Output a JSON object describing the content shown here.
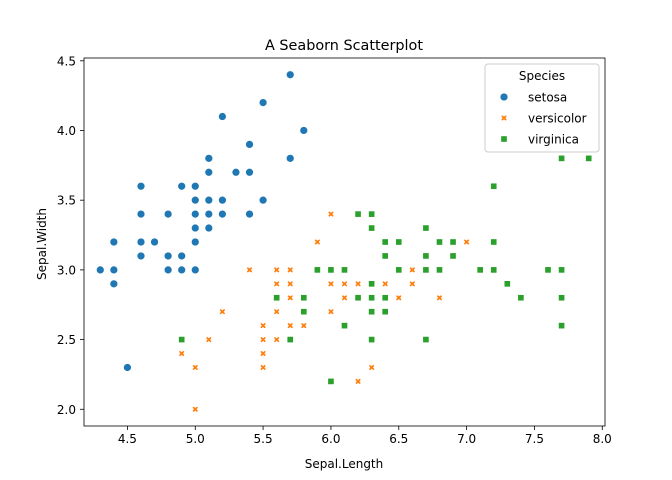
{
  "chart_data": {
    "type": "scatter",
    "title": "A Seaborn Scatterplot",
    "xlabel": "Sepal.Length",
    "ylabel": "Sepal.Width",
    "xlim": [
      4.18,
      8.02
    ],
    "ylim": [
      1.88,
      4.52
    ],
    "xticks": [
      4.5,
      5.0,
      5.5,
      6.0,
      6.5,
      7.0,
      7.5,
      8.0
    ],
    "xtick_labels": [
      "4.5",
      "5.0",
      "5.5",
      "6.0",
      "6.5",
      "7.0",
      "7.5",
      "8.0"
    ],
    "yticks": [
      2.0,
      2.5,
      3.0,
      3.5,
      4.0,
      4.5
    ],
    "ytick_labels": [
      "2.0",
      "2.5",
      "3.0",
      "3.5",
      "4.0",
      "4.5"
    ],
    "grid": false,
    "legend": {
      "title": "Species",
      "placement": "top-right"
    },
    "series": [
      {
        "name": "setosa",
        "marker": "circle",
        "color": "#1f77b4",
        "points": [
          [
            5.1,
            3.5
          ],
          [
            4.9,
            3.0
          ],
          [
            4.7,
            3.2
          ],
          [
            4.6,
            3.1
          ],
          [
            5.0,
            3.6
          ],
          [
            5.4,
            3.9
          ],
          [
            4.6,
            3.4
          ],
          [
            5.0,
            3.4
          ],
          [
            4.4,
            2.9
          ],
          [
            4.9,
            3.1
          ],
          [
            5.4,
            3.7
          ],
          [
            4.8,
            3.4
          ],
          [
            4.8,
            3.0
          ],
          [
            4.3,
            3.0
          ],
          [
            5.8,
            4.0
          ],
          [
            5.7,
            4.4
          ],
          [
            5.4,
            3.9
          ],
          [
            5.1,
            3.5
          ],
          [
            5.7,
            3.8
          ],
          [
            5.1,
            3.8
          ],
          [
            5.4,
            3.4
          ],
          [
            5.1,
            3.7
          ],
          [
            4.6,
            3.6
          ],
          [
            5.1,
            3.3
          ],
          [
            4.8,
            3.4
          ],
          [
            5.0,
            3.0
          ],
          [
            5.0,
            3.4
          ],
          [
            5.2,
            3.5
          ],
          [
            5.2,
            3.4
          ],
          [
            4.7,
            3.2
          ],
          [
            4.8,
            3.1
          ],
          [
            5.4,
            3.4
          ],
          [
            5.2,
            4.1
          ],
          [
            5.5,
            4.2
          ],
          [
            4.9,
            3.1
          ],
          [
            5.0,
            3.2
          ],
          [
            5.5,
            3.5
          ],
          [
            4.9,
            3.6
          ],
          [
            4.4,
            3.0
          ],
          [
            5.1,
            3.4
          ],
          [
            5.0,
            3.5
          ],
          [
            4.5,
            2.3
          ],
          [
            4.4,
            3.2
          ],
          [
            5.0,
            3.5
          ],
          [
            5.1,
            3.8
          ],
          [
            4.8,
            3.0
          ],
          [
            5.1,
            3.8
          ],
          [
            4.6,
            3.2
          ],
          [
            5.3,
            3.7
          ],
          [
            5.0,
            3.3
          ]
        ]
      },
      {
        "name": "versicolor",
        "marker": "x",
        "color": "#ff7f0e",
        "points": [
          [
            7.0,
            3.2
          ],
          [
            6.4,
            3.2
          ],
          [
            6.9,
            3.1
          ],
          [
            5.5,
            2.3
          ],
          [
            6.5,
            2.8
          ],
          [
            5.7,
            2.8
          ],
          [
            6.3,
            3.3
          ],
          [
            4.9,
            2.4
          ],
          [
            6.6,
            2.9
          ],
          [
            5.2,
            2.7
          ],
          [
            5.0,
            2.0
          ],
          [
            5.9,
            3.0
          ],
          [
            6.0,
            2.2
          ],
          [
            6.1,
            2.9
          ],
          [
            5.6,
            2.9
          ],
          [
            6.7,
            3.1
          ],
          [
            5.6,
            3.0
          ],
          [
            5.8,
            2.7
          ],
          [
            6.2,
            2.2
          ],
          [
            5.6,
            2.5
          ],
          [
            5.9,
            3.2
          ],
          [
            6.1,
            2.8
          ],
          [
            6.3,
            2.5
          ],
          [
            6.1,
            2.8
          ],
          [
            6.4,
            2.9
          ],
          [
            6.6,
            3.0
          ],
          [
            6.8,
            2.8
          ],
          [
            6.7,
            3.0
          ],
          [
            6.0,
            2.9
          ],
          [
            5.7,
            2.6
          ],
          [
            5.5,
            2.4
          ],
          [
            5.5,
            2.4
          ],
          [
            5.8,
            2.7
          ],
          [
            6.0,
            2.7
          ],
          [
            5.4,
            3.0
          ],
          [
            6.0,
            3.4
          ],
          [
            6.7,
            3.1
          ],
          [
            6.3,
            2.3
          ],
          [
            5.6,
            3.0
          ],
          [
            5.5,
            2.5
          ],
          [
            5.5,
            2.6
          ],
          [
            6.1,
            3.0
          ],
          [
            5.8,
            2.6
          ],
          [
            5.0,
            2.3
          ],
          [
            5.6,
            2.7
          ],
          [
            5.7,
            3.0
          ],
          [
            5.7,
            2.9
          ],
          [
            6.2,
            2.9
          ],
          [
            5.1,
            2.5
          ],
          [
            5.7,
            2.8
          ]
        ]
      },
      {
        "name": "virginica",
        "marker": "square",
        "color": "#2ca02c",
        "points": [
          [
            6.3,
            3.3
          ],
          [
            5.8,
            2.7
          ],
          [
            7.1,
            3.0
          ],
          [
            6.3,
            2.9
          ],
          [
            6.5,
            3.0
          ],
          [
            7.6,
            3.0
          ],
          [
            4.9,
            2.5
          ],
          [
            7.3,
            2.9
          ],
          [
            6.7,
            2.5
          ],
          [
            7.2,
            3.6
          ],
          [
            6.5,
            3.2
          ],
          [
            6.4,
            2.7
          ],
          [
            6.8,
            3.0
          ],
          [
            5.7,
            2.5
          ],
          [
            5.8,
            2.8
          ],
          [
            6.4,
            3.2
          ],
          [
            6.5,
            3.0
          ],
          [
            7.7,
            3.8
          ],
          [
            7.7,
            2.6
          ],
          [
            6.0,
            2.2
          ],
          [
            6.9,
            3.2
          ],
          [
            5.6,
            2.8
          ],
          [
            7.7,
            2.8
          ],
          [
            6.3,
            2.7
          ],
          [
            6.7,
            3.3
          ],
          [
            7.2,
            3.2
          ],
          [
            6.2,
            2.8
          ],
          [
            6.1,
            3.0
          ],
          [
            6.4,
            2.8
          ],
          [
            7.2,
            3.0
          ],
          [
            7.4,
            2.8
          ],
          [
            7.9,
            3.8
          ],
          [
            6.4,
            2.8
          ],
          [
            6.3,
            2.8
          ],
          [
            6.1,
            2.6
          ],
          [
            7.7,
            3.0
          ],
          [
            6.3,
            3.4
          ],
          [
            6.4,
            3.1
          ],
          [
            6.0,
            3.0
          ],
          [
            6.9,
            3.1
          ],
          [
            6.7,
            3.1
          ],
          [
            6.9,
            3.1
          ],
          [
            5.8,
            2.7
          ],
          [
            6.8,
            3.2
          ],
          [
            6.7,
            3.3
          ],
          [
            6.7,
            3.0
          ],
          [
            6.3,
            2.5
          ],
          [
            6.5,
            3.0
          ],
          [
            6.2,
            3.4
          ],
          [
            5.9,
            3.0
          ]
        ]
      }
    ]
  }
}
